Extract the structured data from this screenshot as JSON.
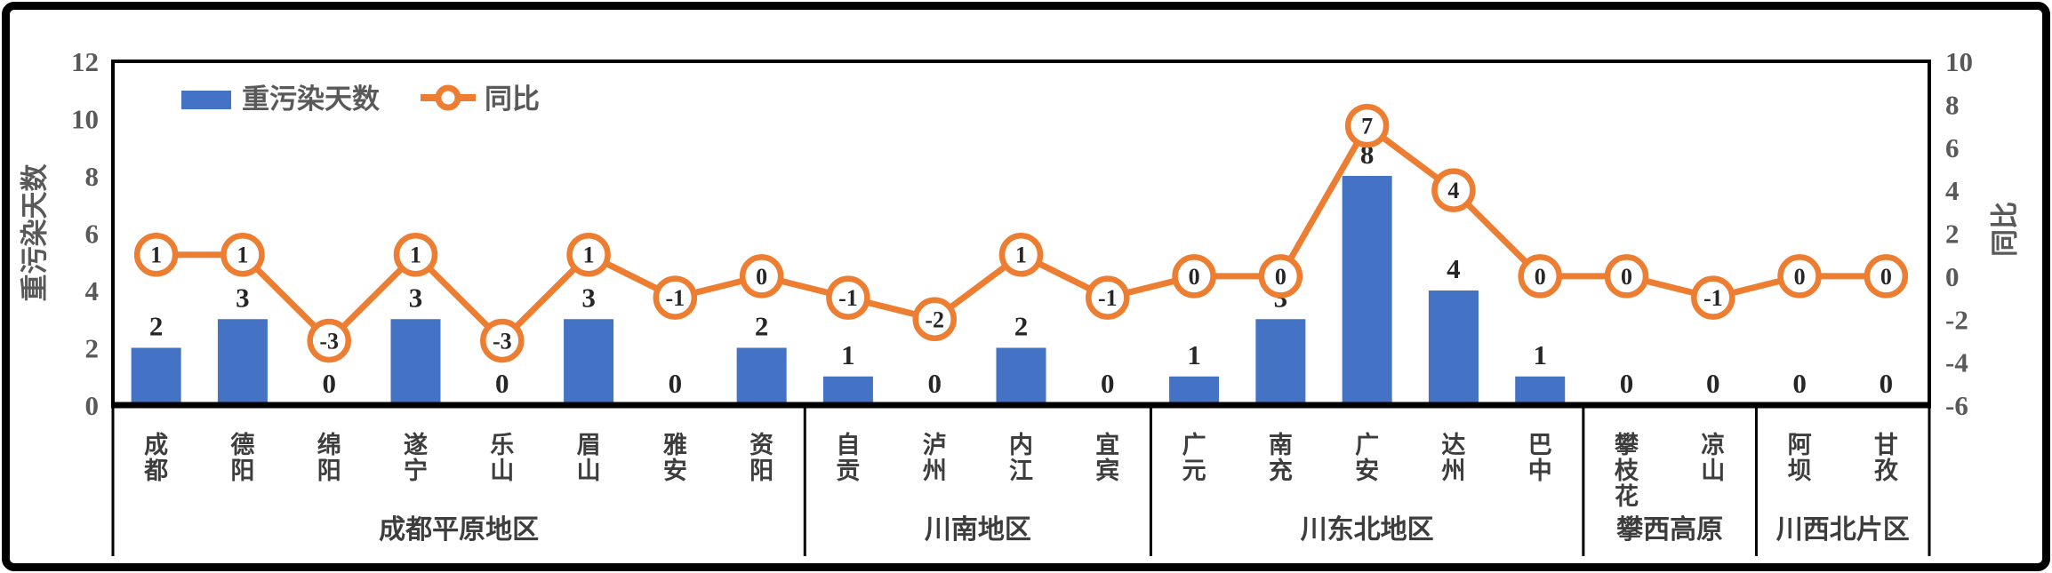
{
  "chart_data": {
    "type": "bar",
    "combo": "bar+line",
    "title": "",
    "legend": {
      "bar_label": "重污染天数",
      "line_label": "同比",
      "position": "top-left-inside"
    },
    "left_axis": {
      "title": "重污染天数",
      "min": 0,
      "max": 12,
      "step": 2,
      "ticks": [
        0,
        2,
        4,
        6,
        8,
        10,
        12
      ]
    },
    "right_axis": {
      "title": "同比",
      "min": -6,
      "max": 10,
      "step": 2,
      "ticks": [
        -6,
        -4,
        -2,
        0,
        2,
        4,
        6,
        8,
        10
      ]
    },
    "grid": "off",
    "categories": [
      "成都",
      "德阳",
      "绵阳",
      "遂宁",
      "乐山",
      "眉山",
      "雅安",
      "资阳",
      "自贡",
      "泸州",
      "内江",
      "宜宾",
      "广元",
      "南充",
      "广安",
      "达州",
      "巴中",
      "攀枝花",
      "凉山",
      "阿坝",
      "甘孜"
    ],
    "groups": [
      {
        "label": "成都平原地区",
        "count": 8
      },
      {
        "label": "川南地区",
        "count": 4
      },
      {
        "label": "川东北地区",
        "count": 5
      },
      {
        "label": "攀西高原",
        "count": 2
      },
      {
        "label": "川西北片区",
        "count": 2
      }
    ],
    "series": [
      {
        "name": "重污染天数",
        "type": "bar",
        "axis": "left",
        "color": "#4472C4",
        "values": [
          2,
          3,
          0,
          3,
          0,
          3,
          0,
          2,
          1,
          0,
          2,
          0,
          1,
          3,
          8,
          4,
          1,
          0,
          0,
          0,
          0
        ]
      },
      {
        "name": "同比",
        "type": "line",
        "axis": "right",
        "color": "#ED7D31",
        "values": [
          1,
          1,
          -3,
          1,
          -3,
          1,
          -1,
          0,
          -1,
          -2,
          1,
          -1,
          0,
          0,
          7,
          4,
          0,
          0,
          -1,
          0,
          0
        ]
      }
    ]
  },
  "colors": {
    "bar": "#4472C4",
    "line": "#ED7D31",
    "axis_text": "#595959",
    "data_label": "#262626",
    "frame": "#000000"
  }
}
